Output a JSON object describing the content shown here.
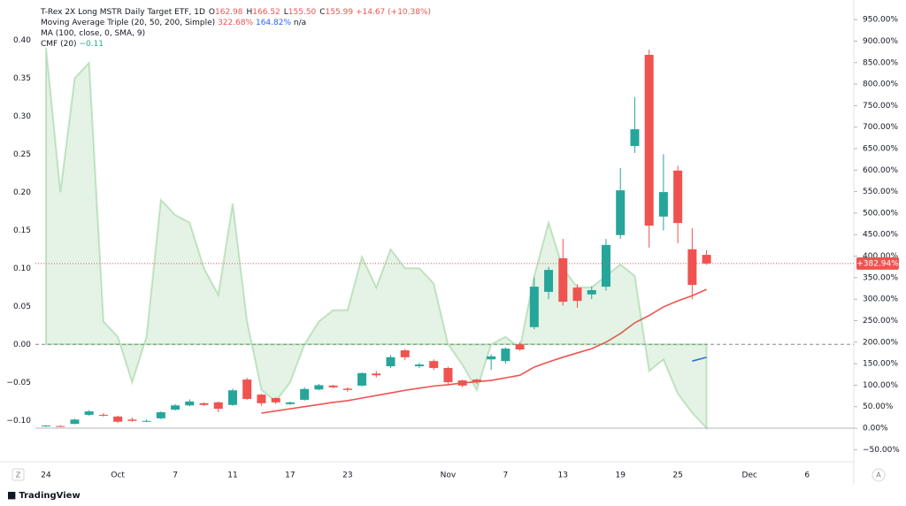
{
  "chart_data": {
    "type": "candlestick",
    "title": "T-Rex 2X Long MSTR Daily Target ETF, 1D",
    "ohlc_readout": [
      {
        "key": "O",
        "value": "162.98"
      },
      {
        "key": "H",
        "value": "166.52"
      },
      {
        "key": "L",
        "value": "155.50"
      },
      {
        "key": "C",
        "value": "155.99"
      }
    ],
    "change": "+14.67 (+10.38%)",
    "ma_triple_label": "Moving Average Triple (20, 50, 200, Simple)",
    "ma_triple_readout": [
      "322.68%",
      "164.82%",
      "n/a"
    ],
    "ma100_label": "MA (100, close, 0, SMA, 9)",
    "cmf_label": "CMF (20)",
    "cmf_readout": "−0.11",
    "branding": "TradingView",
    "categories": [
      "24",
      null,
      null,
      null,
      null,
      "Oct",
      null,
      null,
      null,
      "7",
      null,
      null,
      null,
      "11",
      null,
      null,
      null,
      "17",
      null,
      null,
      null,
      "23",
      null,
      null,
      null,
      null,
      null,
      null,
      "Nov",
      null,
      null,
      null,
      "7",
      null,
      null,
      null,
      "13",
      null,
      null,
      null,
      "19",
      null,
      null,
      null,
      "25",
      null,
      null,
      null,
      null,
      "Dec",
      null,
      null,
      null,
      "6",
      null,
      null
    ],
    "up_color": "#26a69a",
    "down_color": "#ef5350",
    "open": [
      4,
      5,
      10,
      31,
      31,
      27,
      20,
      16,
      23,
      43,
      53,
      58,
      60,
      54,
      113,
      78,
      70,
      56,
      66,
      90,
      99,
      92,
      99,
      127,
      144,
      181,
      144,
      156,
      140,
      111,
      113,
      160,
      156,
      195,
      235,
      317,
      395,
      327,
      311,
      329,
      449,
      656,
      868,
      492,
      599,
      416,
      403,
      null,
      null,
      null,
      null,
      null,
      null,
      null,
      null,
      null
    ],
    "high": [
      7,
      7,
      22,
      42,
      35,
      29,
      25,
      20,
      39,
      56,
      67,
      60,
      62,
      92,
      117,
      80,
      72,
      62,
      95,
      103,
      101,
      95,
      130,
      133,
      170,
      184,
      152,
      160,
      143,
      113,
      115,
      172,
      188,
      200,
      350,
      375,
      440,
      335,
      330,
      440,
      605,
      770,
      880,
      637,
      610,
      465,
      414,
      null,
      null,
      null,
      null,
      null,
      null,
      null,
      null,
      null
    ],
    "low": [
      3,
      3,
      9,
      29,
      27,
      12,
      15,
      14,
      21,
      41,
      51,
      52,
      37,
      52,
      66,
      52,
      56,
      54,
      64,
      88,
      93,
      85,
      97,
      118,
      140,
      158,
      140,
      135,
      101,
      95,
      102,
      135,
      150,
      180,
      230,
      300,
      285,
      280,
      300,
      320,
      440,
      640,
      420,
      460,
      430,
      300,
      380,
      null,
      null,
      null,
      null,
      null,
      null,
      null,
      null,
      null
    ],
    "close": [
      6,
      4,
      20,
      39,
      30,
      15,
      17,
      17,
      37,
      53,
      62,
      54,
      45,
      88,
      68,
      58,
      60,
      60,
      91,
      100,
      95,
      89,
      128,
      123,
      165,
      165,
      148,
      140,
      107,
      99,
      107,
      167,
      185,
      183,
      329,
      368,
      294,
      296,
      321,
      426,
      553,
      695,
      471,
      549,
      477,
      333,
      382.94,
      null,
      null,
      null,
      null,
      null,
      null,
      null,
      null,
      null
    ],
    "last_label": "+382.94%",
    "last_color": "#ef5350",
    "series": [
      {
        "color": "#ef5350",
        "values": [
          null,
          null,
          null,
          null,
          null,
          null,
          null,
          null,
          null,
          null,
          null,
          null,
          null,
          null,
          null,
          35,
          40,
          45,
          50,
          55,
          60,
          64,
          70,
          76,
          82,
          88,
          93,
          98,
          101,
          105,
          108,
          111,
          117,
          123,
          142,
          154,
          165,
          175,
          185,
          200,
          220,
          245,
          262,
          282,
          296,
          308,
          322.68,
          null,
          null,
          null,
          null,
          null,
          null,
          null,
          null,
          null
        ]
      },
      {
        "color": "#2962ff",
        "values": [
          null,
          null,
          null,
          null,
          null,
          null,
          null,
          null,
          null,
          null,
          null,
          null,
          null,
          null,
          null,
          null,
          null,
          null,
          null,
          null,
          null,
          null,
          null,
          null,
          null,
          null,
          null,
          null,
          null,
          null,
          null,
          null,
          null,
          null,
          null,
          null,
          null,
          null,
          null,
          null,
          null,
          null,
          null,
          null,
          null,
          156,
          164.82,
          null,
          null,
          null,
          null,
          null,
          null,
          null,
          null,
          null
        ]
      },
      {
        "color": "#4caf50",
        "axis": "y2",
        "values": [
          0.39,
          0.2,
          0.35,
          0.37,
          0.03,
          0.01,
          -0.05,
          0.01,
          0.19,
          0.17,
          0.16,
          0.1,
          0.065,
          0.185,
          0.03,
          -0.06,
          -0.075,
          -0.05,
          0.0,
          0.03,
          0.045,
          0.045,
          0.115,
          0.075,
          0.125,
          0.1,
          0.1,
          0.08,
          0.0,
          -0.027,
          -0.06,
          0.0,
          0.01,
          -0.005,
          0.09,
          0.16,
          0.1,
          0.075,
          0.075,
          0.09,
          0.105,
          0.09,
          -0.035,
          -0.02,
          -0.065,
          -0.09,
          -0.11,
          null,
          null,
          null,
          null,
          null,
          null,
          null,
          null,
          null
        ]
      }
    ],
    "ylim": [
      -74,
      975
    ],
    "yticks": [
      {
        "value": -50,
        "label": "−50.00%"
      },
      {
        "value": 0,
        "label": "0.00%"
      },
      {
        "value": 50,
        "label": "50.00%"
      },
      {
        "value": 100,
        "label": "100.00%"
      },
      {
        "value": 150,
        "label": "150.00%"
      },
      {
        "value": 200,
        "label": "200.00%"
      },
      {
        "value": 250,
        "label": "250.00%"
      },
      {
        "value": 300,
        "label": "300.00%"
      },
      {
        "value": 350,
        "label": "350.00%"
      },
      {
        "value": 400,
        "label": "400.00%"
      },
      {
        "value": 450,
        "label": "450.00%"
      },
      {
        "value": 500,
        "label": "500.00%"
      },
      {
        "value": 550,
        "label": "550.00%"
      },
      {
        "value": 600,
        "label": "600.00%"
      },
      {
        "value": 650,
        "label": "650.00%"
      },
      {
        "value": 700,
        "label": "700.00%"
      },
      {
        "value": 750,
        "label": "750.00%"
      },
      {
        "value": 800,
        "label": "800.00%"
      },
      {
        "value": 850,
        "label": "850.00%"
      },
      {
        "value": 900,
        "label": "900.00%"
      },
      {
        "value": 950,
        "label": "950.00%"
      }
    ],
    "y2lim": [
      -0.152,
      0.441
    ],
    "y2ticks": [
      {
        "value": -0.1,
        "label": "−0.10"
      },
      {
        "value": -0.05,
        "label": "−0.05"
      },
      {
        "value": 0,
        "label": "0.00"
      },
      {
        "value": 0.05,
        "label": "0.05"
      },
      {
        "value": 0.1,
        "label": "0.10"
      },
      {
        "value": 0.15,
        "label": "0.15"
      },
      {
        "value": 0.2,
        "label": "0.20"
      },
      {
        "value": 0.25,
        "label": "0.25"
      },
      {
        "value": 0.3,
        "label": "0.30"
      },
      {
        "value": 0.35,
        "label": "0.35"
      },
      {
        "value": 0.4,
        "label": "0.40"
      }
    ],
    "grid": false
  }
}
